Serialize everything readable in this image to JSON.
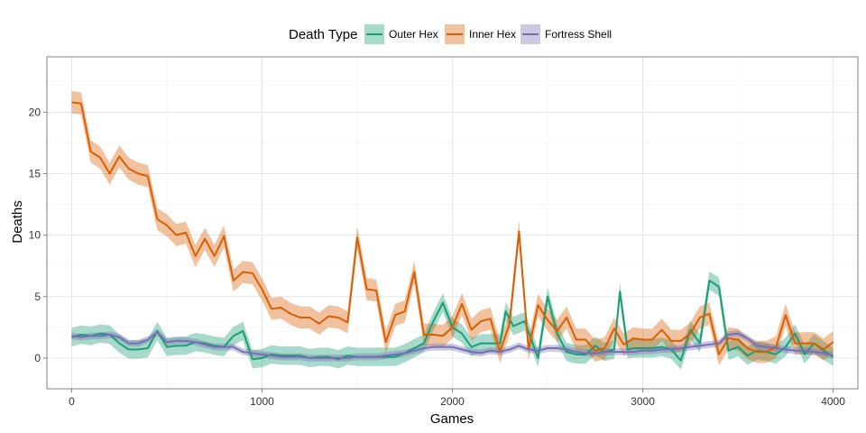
{
  "chart_data": {
    "type": "line",
    "xlabel": "Games",
    "ylabel": "Deaths",
    "xlim": [
      -130,
      4130
    ],
    "ylim": [
      -2.5,
      24.5
    ],
    "x_ticks": [
      0,
      1000,
      2000,
      3000,
      4000
    ],
    "y_ticks": [
      0,
      5,
      10,
      15,
      20
    ],
    "grid": true,
    "legend": {
      "title": "Death Type",
      "position": "top"
    },
    "series": [
      {
        "name": "Outer Hex",
        "color": "#1b9e77",
        "band_halfwidth": 0.75,
        "points": [
          [
            0,
            1.7
          ],
          [
            50,
            1.9
          ],
          [
            100,
            1.8
          ],
          [
            150,
            2.0
          ],
          [
            200,
            1.9
          ],
          [
            250,
            1.2
          ],
          [
            300,
            0.7
          ],
          [
            350,
            0.7
          ],
          [
            400,
            0.8
          ],
          [
            450,
            2.2
          ],
          [
            500,
            0.9
          ],
          [
            550,
            1.0
          ],
          [
            600,
            1.0
          ],
          [
            650,
            1.3
          ],
          [
            700,
            1.2
          ],
          [
            750,
            1.0
          ],
          [
            800,
            0.9
          ],
          [
            850,
            1.8
          ],
          [
            900,
            2.2
          ],
          [
            950,
            -0.1
          ],
          [
            1000,
            0.0
          ],
          [
            1050,
            0.3
          ],
          [
            1100,
            0.2
          ],
          [
            1150,
            0.2
          ],
          [
            1200,
            0.2
          ],
          [
            1250,
            0.0
          ],
          [
            1300,
            0.1
          ],
          [
            1350,
            0.1
          ],
          [
            1400,
            -0.1
          ],
          [
            1450,
            0.2
          ],
          [
            1500,
            0.1
          ],
          [
            1550,
            0.1
          ],
          [
            1600,
            0.1
          ],
          [
            1650,
            0.1
          ],
          [
            1700,
            0.1
          ],
          [
            1750,
            0.4
          ],
          [
            1800,
            0.8
          ],
          [
            1850,
            1.2
          ],
          [
            1900,
            3.0
          ],
          [
            1950,
            4.5
          ],
          [
            2000,
            2.5
          ],
          [
            2050,
            2.0
          ],
          [
            2100,
            0.9
          ],
          [
            2150,
            1.2
          ],
          [
            2200,
            1.2
          ],
          [
            2250,
            1.2
          ],
          [
            2280,
            3.8
          ],
          [
            2320,
            2.6
          ],
          [
            2380,
            3.0
          ],
          [
            2450,
            0.0
          ],
          [
            2500,
            5.0
          ],
          [
            2550,
            2.0
          ],
          [
            2600,
            0.5
          ],
          [
            2650,
            0.3
          ],
          [
            2700,
            0.3
          ],
          [
            2750,
            1.0
          ],
          [
            2800,
            0.5
          ],
          [
            2850,
            0.7
          ],
          [
            2880,
            5.4
          ],
          [
            2920,
            0.7
          ],
          [
            2950,
            0.8
          ],
          [
            3000,
            0.8
          ],
          [
            3050,
            0.8
          ],
          [
            3100,
            0.9
          ],
          [
            3150,
            0.7
          ],
          [
            3200,
            -0.2
          ],
          [
            3250,
            2.3
          ],
          [
            3300,
            1.2
          ],
          [
            3350,
            6.3
          ],
          [
            3400,
            5.8
          ],
          [
            3450,
            0.6
          ],
          [
            3500,
            0.9
          ],
          [
            3550,
            0.2
          ],
          [
            3600,
            0.6
          ],
          [
            3650,
            0.5
          ],
          [
            3700,
            0.3
          ],
          [
            3750,
            0.9
          ],
          [
            3800,
            2.0
          ],
          [
            3850,
            0.3
          ],
          [
            3900,
            1.2
          ],
          [
            3950,
            0.6
          ],
          [
            4000,
            0.1
          ]
        ]
      },
      {
        "name": "Inner Hex",
        "color": "#d95f02",
        "band_halfwidth": 0.9,
        "points": [
          [
            0,
            20.8
          ],
          [
            50,
            20.7
          ],
          [
            100,
            16.8
          ],
          [
            150,
            16.3
          ],
          [
            200,
            15.0
          ],
          [
            250,
            16.4
          ],
          [
            300,
            15.4
          ],
          [
            350,
            15.0
          ],
          [
            400,
            14.8
          ],
          [
            450,
            11.3
          ],
          [
            500,
            10.8
          ],
          [
            550,
            10.0
          ],
          [
            600,
            10.2
          ],
          [
            650,
            8.3
          ],
          [
            700,
            9.7
          ],
          [
            750,
            8.3
          ],
          [
            800,
            9.9
          ],
          [
            850,
            6.3
          ],
          [
            900,
            7.0
          ],
          [
            950,
            6.9
          ],
          [
            1000,
            5.6
          ],
          [
            1050,
            4.0
          ],
          [
            1100,
            4.1
          ],
          [
            1150,
            3.6
          ],
          [
            1200,
            3.3
          ],
          [
            1250,
            3.3
          ],
          [
            1300,
            2.8
          ],
          [
            1350,
            3.4
          ],
          [
            1400,
            3.3
          ],
          [
            1450,
            2.9
          ],
          [
            1500,
            9.8
          ],
          [
            1550,
            5.6
          ],
          [
            1600,
            5.5
          ],
          [
            1650,
            1.3
          ],
          [
            1700,
            3.5
          ],
          [
            1750,
            3.8
          ],
          [
            1800,
            7.0
          ],
          [
            1850,
            1.9
          ],
          [
            1900,
            1.9
          ],
          [
            1950,
            1.8
          ],
          [
            2000,
            2.5
          ],
          [
            2050,
            4.4
          ],
          [
            2100,
            2.3
          ],
          [
            2150,
            3.0
          ],
          [
            2200,
            3.2
          ],
          [
            2250,
            0.5
          ],
          [
            2300,
            2.8
          ],
          [
            2350,
            10.3
          ],
          [
            2400,
            0.7
          ],
          [
            2450,
            4.3
          ],
          [
            2500,
            3.1
          ],
          [
            2550,
            2.2
          ],
          [
            2600,
            3.3
          ],
          [
            2650,
            1.5
          ],
          [
            2700,
            1.5
          ],
          [
            2750,
            0.6
          ],
          [
            2800,
            0.8
          ],
          [
            2850,
            2.4
          ],
          [
            2900,
            1.1
          ],
          [
            2950,
            1.6
          ],
          [
            3000,
            1.5
          ],
          [
            3050,
            1.5
          ],
          [
            3100,
            2.3
          ],
          [
            3150,
            1.4
          ],
          [
            3200,
            1.4
          ],
          [
            3250,
            2.0
          ],
          [
            3300,
            3.3
          ],
          [
            3350,
            3.6
          ],
          [
            3400,
            0.3
          ],
          [
            3450,
            1.6
          ],
          [
            3500,
            1.5
          ],
          [
            3550,
            0.8
          ],
          [
            3600,
            0.5
          ],
          [
            3650,
            0.5
          ],
          [
            3700,
            0.9
          ],
          [
            3750,
            3.5
          ],
          [
            3800,
            1.2
          ],
          [
            3850,
            1.2
          ],
          [
            3900,
            1.2
          ],
          [
            3950,
            0.7
          ],
          [
            4000,
            1.3
          ]
        ]
      },
      {
        "name": "Fortress Shell",
        "color": "#7570b3",
        "band_halfwidth": 0.28,
        "points": [
          [
            0,
            1.8
          ],
          [
            50,
            1.7
          ],
          [
            100,
            1.8
          ],
          [
            150,
            1.8
          ],
          [
            200,
            1.9
          ],
          [
            250,
            1.7
          ],
          [
            300,
            1.2
          ],
          [
            350,
            1.2
          ],
          [
            400,
            1.5
          ],
          [
            450,
            2.1
          ],
          [
            500,
            1.3
          ],
          [
            550,
            1.4
          ],
          [
            600,
            1.4
          ],
          [
            650,
            1.3
          ],
          [
            700,
            1.1
          ],
          [
            750,
            0.9
          ],
          [
            800,
            0.9
          ],
          [
            850,
            0.9
          ],
          [
            900,
            0.5
          ],
          [
            950,
            0.4
          ],
          [
            1000,
            0.3
          ],
          [
            1050,
            0.2
          ],
          [
            1100,
            0.1
          ],
          [
            1150,
            0.1
          ],
          [
            1200,
            0.1
          ],
          [
            1250,
            0.0
          ],
          [
            1300,
            0.0
          ],
          [
            1350,
            0.0
          ],
          [
            1400,
            0.0
          ],
          [
            1450,
            0.0
          ],
          [
            1500,
            0.1
          ],
          [
            1550,
            0.1
          ],
          [
            1600,
            0.1
          ],
          [
            1650,
            0.2
          ],
          [
            1700,
            0.3
          ],
          [
            1750,
            0.4
          ],
          [
            1800,
            0.6
          ],
          [
            1850,
            0.8
          ],
          [
            1900,
            0.9
          ],
          [
            1950,
            0.9
          ],
          [
            2000,
            0.9
          ],
          [
            2050,
            0.7
          ],
          [
            2100,
            0.5
          ],
          [
            2150,
            0.4
          ],
          [
            2200,
            0.6
          ],
          [
            2250,
            0.5
          ],
          [
            2300,
            0.7
          ],
          [
            2350,
            1.0
          ],
          [
            2400,
            0.7
          ],
          [
            2450,
            0.6
          ],
          [
            2500,
            0.8
          ],
          [
            2550,
            0.8
          ],
          [
            2600,
            0.7
          ],
          [
            2650,
            0.5
          ],
          [
            2700,
            0.4
          ],
          [
            2750,
            0.4
          ],
          [
            2800,
            0.5
          ],
          [
            2850,
            0.5
          ],
          [
            2900,
            0.5
          ],
          [
            2950,
            0.5
          ],
          [
            3000,
            0.6
          ],
          [
            3050,
            0.6
          ],
          [
            3100,
            0.7
          ],
          [
            3150,
            0.7
          ],
          [
            3200,
            0.8
          ],
          [
            3250,
            0.9
          ],
          [
            3300,
            1.0
          ],
          [
            3350,
            1.1
          ],
          [
            3400,
            1.2
          ],
          [
            3450,
            1.9
          ],
          [
            3500,
            2.0
          ],
          [
            3550,
            1.6
          ],
          [
            3600,
            1.0
          ],
          [
            3650,
            0.9
          ],
          [
            3700,
            0.8
          ],
          [
            3750,
            0.7
          ],
          [
            3800,
            0.6
          ],
          [
            3850,
            0.6
          ],
          [
            3900,
            0.5
          ],
          [
            3950,
            0.4
          ],
          [
            4000,
            0.2
          ]
        ]
      }
    ]
  }
}
